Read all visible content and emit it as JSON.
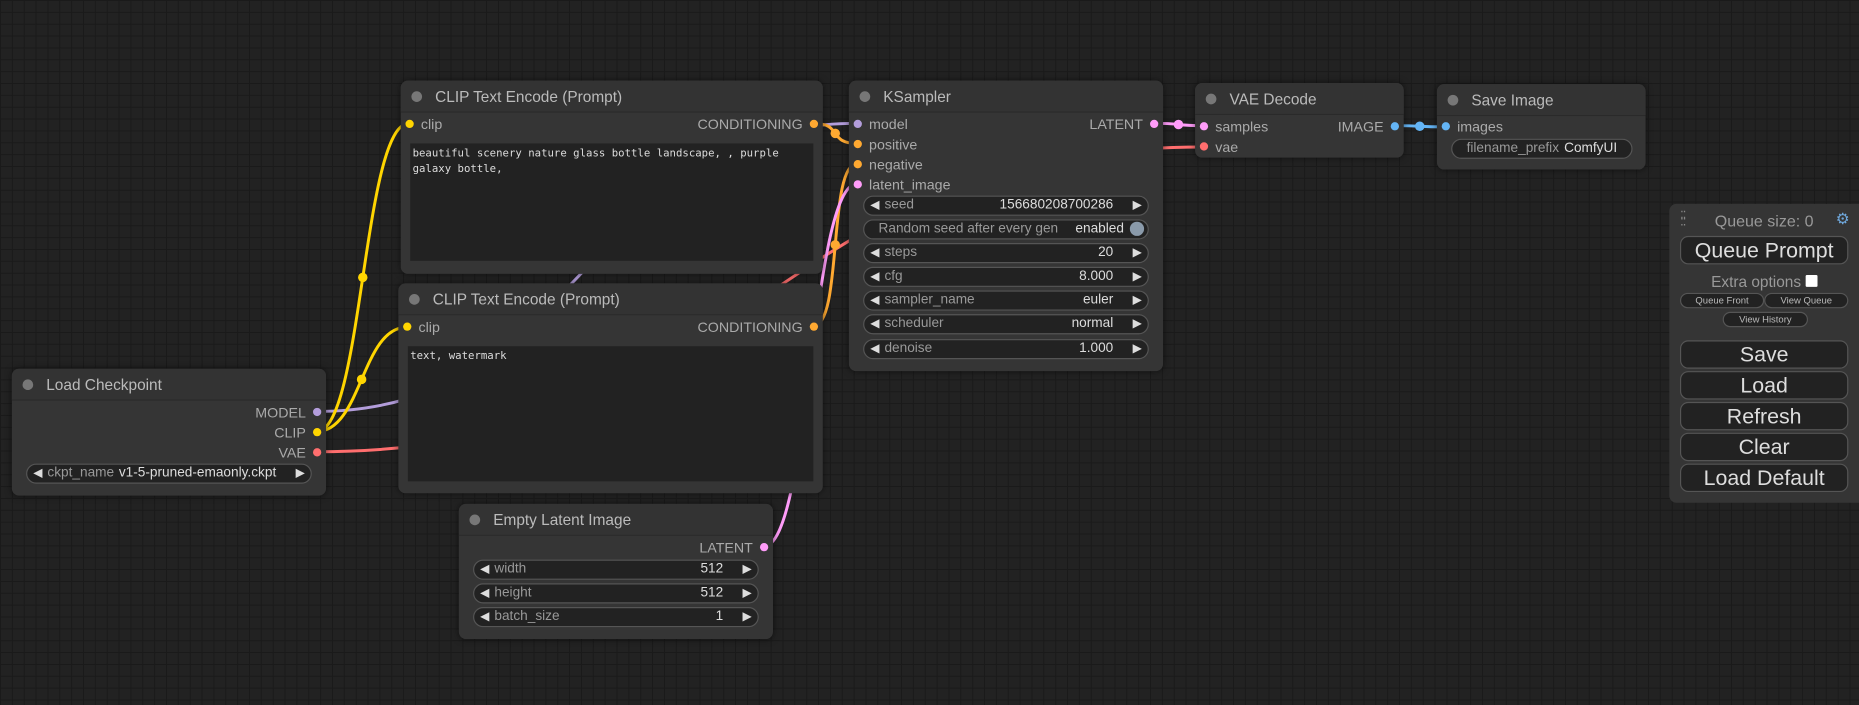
{
  "colors": {
    "model": "#b39ddb",
    "clip": "#ffd500",
    "vae": "#ff6e6e",
    "conditioning": "#ffa931",
    "latent": "#ff9cf9",
    "image": "#64b5f6"
  },
  "nodes": {
    "load_checkpoint": {
      "title": "Load Checkpoint",
      "outputs": [
        "MODEL",
        "CLIP",
        "VAE"
      ],
      "widget": {
        "label": "ckpt_name",
        "value": "v1-5-pruned-emaonly.ckpt"
      }
    },
    "clip_pos": {
      "title": "CLIP Text Encode (Prompt)",
      "input": "clip",
      "output": "CONDITIONING",
      "text": "beautiful scenery nature glass bottle landscape, , purple galaxy bottle,"
    },
    "clip_neg": {
      "title": "CLIP Text Encode (Prompt)",
      "input": "clip",
      "output": "CONDITIONING",
      "text": "text, watermark"
    },
    "empty_latent": {
      "title": "Empty Latent Image",
      "output": "LATENT",
      "widgets": [
        {
          "label": "width",
          "value": "512"
        },
        {
          "label": "height",
          "value": "512"
        },
        {
          "label": "batch_size",
          "value": "1"
        }
      ]
    },
    "ksampler": {
      "title": "KSampler",
      "inputs": [
        "model",
        "positive",
        "negative",
        "latent_image"
      ],
      "output": "LATENT",
      "seed": {
        "label": "seed",
        "value": "156680208700286"
      },
      "random_seed": {
        "label": "Random seed after every gen",
        "value": "enabled"
      },
      "widgets": [
        {
          "label": "steps",
          "value": "20"
        },
        {
          "label": "cfg",
          "value": "8.000"
        },
        {
          "label": "sampler_name",
          "value": "euler"
        },
        {
          "label": "scheduler",
          "value": "normal"
        },
        {
          "label": "denoise",
          "value": "1.000"
        }
      ]
    },
    "vae_decode": {
      "title": "VAE Decode",
      "inputs": [
        "samples",
        "vae"
      ],
      "output": "IMAGE"
    },
    "save_image": {
      "title": "Save Image",
      "input": "images",
      "widget": {
        "label": "filename_prefix",
        "value": "ComfyUI"
      }
    }
  },
  "panel": {
    "queue_size": "Queue size: 0",
    "queue_prompt": "Queue Prompt",
    "extra_options": "Extra options",
    "queue_front": "Queue Front",
    "view_queue": "View Queue",
    "view_history": "View History",
    "save": "Save",
    "load": "Load",
    "refresh": "Refresh",
    "clear": "Clear",
    "load_default": "Load Default"
  }
}
